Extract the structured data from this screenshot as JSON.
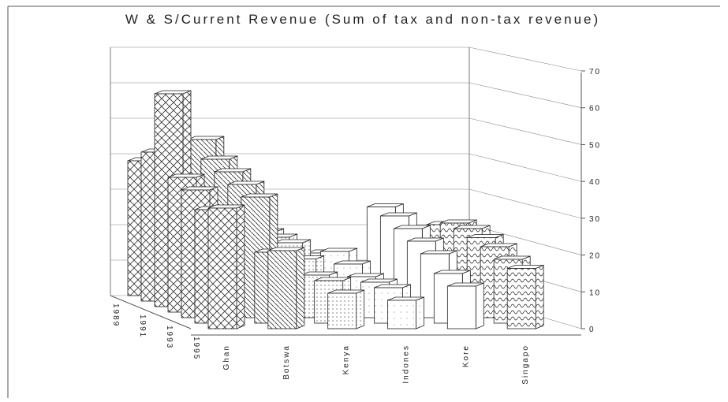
{
  "chart_data": {
    "type": "bar3d",
    "title": "W & S/Current Revenue (Sum of tax and non-tax revenue)",
    "categories": [
      "Ghan",
      "Botswa",
      "Kenya",
      "Indones",
      "Kore",
      "Singapo"
    ],
    "series": [
      {
        "name": "1989",
        "values": [
          38,
          44,
          18,
          12,
          25,
          20
        ]
      },
      {
        "name": null,
        "values": [
          42,
          40,
          18,
          14,
          24,
          22
        ]
      },
      {
        "name": "1991",
        "values": [
          60,
          38,
          18,
          12,
          22,
          22
        ]
      },
      {
        "name": null,
        "values": [
          38,
          36,
          15,
          10,
          20,
          21
        ]
      },
      {
        "name": "1993",
        "values": [
          36,
          34,
          12,
          10,
          18,
          20
        ]
      },
      {
        "name": null,
        "values": [
          32,
          20,
          12,
          10,
          14,
          18
        ]
      },
      {
        "name": "1995",
        "values": [
          34,
          22,
          10,
          8,
          12,
          17
        ]
      }
    ],
    "ylim": [
      0,
      70
    ],
    "yticks": [
      0,
      10,
      20,
      30,
      40,
      50,
      60,
      70
    ],
    "grid": true
  }
}
